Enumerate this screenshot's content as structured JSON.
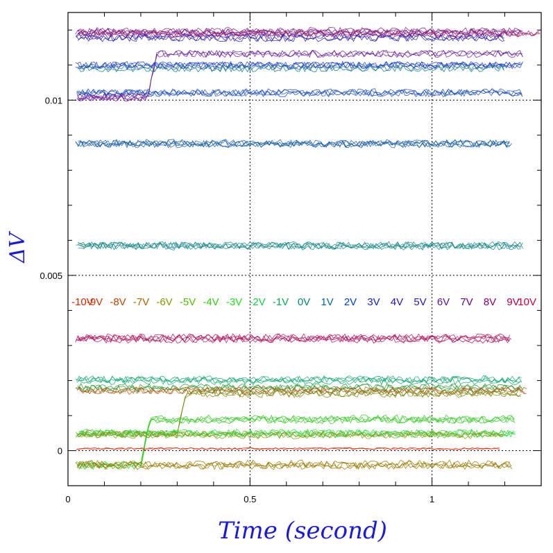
{
  "chart_data": {
    "type": "line",
    "xlabel": "Time (second)",
    "ylabel": "ΔV",
    "xlim": [
      0,
      1.3
    ],
    "ylim": [
      -0.001,
      0.0125
    ],
    "x_ticks": [
      {
        "value": 0,
        "label": "0"
      },
      {
        "value": 0.5,
        "label": "0.5"
      },
      {
        "value": 1,
        "label": "1"
      }
    ],
    "y_ticks": [
      {
        "value": 0,
        "label": "0"
      },
      {
        "value": 0.005,
        "label": "0.005"
      },
      {
        "value": 0.01,
        "label": "0.01"
      }
    ],
    "grid": "dotted at major ticks",
    "legend": [
      {
        "label": "-10V",
        "color": "#dd2200"
      },
      {
        "label": "-9V",
        "color": "#cc3300"
      },
      {
        "label": "-8V",
        "color": "#bb4400"
      },
      {
        "label": "-7V",
        "color": "#aa6600"
      },
      {
        "label": "-6V",
        "color": "#889900"
      },
      {
        "label": "-5V",
        "color": "#55bb00"
      },
      {
        "label": "-4V",
        "color": "#33cc11"
      },
      {
        "label": "-3V",
        "color": "#22dd22"
      },
      {
        "label": "-2V",
        "color": "#11cc44"
      },
      {
        "label": "-1V",
        "color": "#00aa55"
      },
      {
        "label": "0V",
        "color": "#008877"
      },
      {
        "label": "1V",
        "color": "#006699"
      },
      {
        "label": "2V",
        "color": "#0044bb"
      },
      {
        "label": "3V",
        "color": "#1122cc"
      },
      {
        "label": "4V",
        "color": "#2211bb"
      },
      {
        "label": "5V",
        "color": "#3311aa"
      },
      {
        "label": "6V",
        "color": "#551199"
      },
      {
        "label": "7V",
        "color": "#660088"
      },
      {
        "label": "8V",
        "color": "#880077"
      },
      {
        "label": "9V",
        "color": "#aa0055"
      },
      {
        "label": "10V",
        "color": "#cc0033"
      }
    ],
    "bands": [
      {
        "level": 0.01195,
        "noise": 0.0001,
        "x_end": 1.25,
        "color": "#7a1f8f",
        "count": 4
      },
      {
        "level": 0.0119,
        "noise": 0.0001,
        "x_end": 1.3,
        "color": "#a0186a",
        "count": 3
      },
      {
        "level": 0.0118,
        "noise": 0.0001,
        "x_end": 1.2,
        "color": "#2a1fb5",
        "count": 3
      },
      {
        "level": 0.0113,
        "noise": 0.0001,
        "x_end": 1.25,
        "color": "#6a1fa0",
        "count": 3,
        "step_from": 0.0101,
        "step_at": 0.22
      },
      {
        "level": 0.011,
        "noise": 0.0001,
        "x_end": 1.25,
        "color": "#1a3fcc",
        "count": 4
      },
      {
        "level": 0.0109,
        "noise": 0.0001,
        "x_end": 1.2,
        "color": "#117a88",
        "count": 2
      },
      {
        "level": 0.0102,
        "noise": 0.0001,
        "x_end": 1.25,
        "color": "#1a4fc0",
        "count": 4
      },
      {
        "level": 0.0101,
        "noise": 0.0001,
        "x_end": 0.22,
        "color": "#7a1fa0",
        "count": 3
      },
      {
        "level": 0.00875,
        "noise": 0.0001,
        "x_end": 1.22,
        "color": "#1a5fa8",
        "count": 5
      },
      {
        "level": 0.00585,
        "noise": 0.0001,
        "x_end": 1.25,
        "color": "#1a8a8a",
        "count": 5
      },
      {
        "level": 0.0032,
        "noise": 0.0001,
        "x_end": 1.22,
        "color": "#b01560",
        "count": 5
      },
      {
        "level": 0.002,
        "noise": 0.0001,
        "x_end": 1.25,
        "color": "#15aa70",
        "count": 4
      },
      {
        "level": 0.0018,
        "noise": 0.0001,
        "x_end": 1.25,
        "color": "#2a9a30",
        "count": 3
      },
      {
        "level": 0.0017,
        "noise": 0.0001,
        "x_end": 1.26,
        "color": "#b05a10",
        "count": 3
      },
      {
        "level": 0.00165,
        "noise": 0.0001,
        "x_end": 1.25,
        "color": "#7a8a10",
        "count": 3,
        "step_from": 0.0005,
        "step_at": 0.3
      },
      {
        "level": 0.0009,
        "noise": 0.0001,
        "x_end": 1.23,
        "color": "#33cc22",
        "count": 4,
        "step_from": -0.0004,
        "step_at": 0.2
      },
      {
        "level": 0.0005,
        "noise": 0.0001,
        "x_end": 1.23,
        "color": "#22dd33",
        "count": 4
      },
      {
        "level": 0.00045,
        "noise": 0.0001,
        "x_end": 1.2,
        "color": "#889a10",
        "count": 3
      },
      {
        "level": 5e-05,
        "noise": 3e-05,
        "x_end": 1.19,
        "color": "#dd2200",
        "count": 2
      },
      {
        "level": -0.0004,
        "noise": 0.0001,
        "x_end": 1.22,
        "color": "#9a7a00",
        "count": 4
      }
    ]
  }
}
